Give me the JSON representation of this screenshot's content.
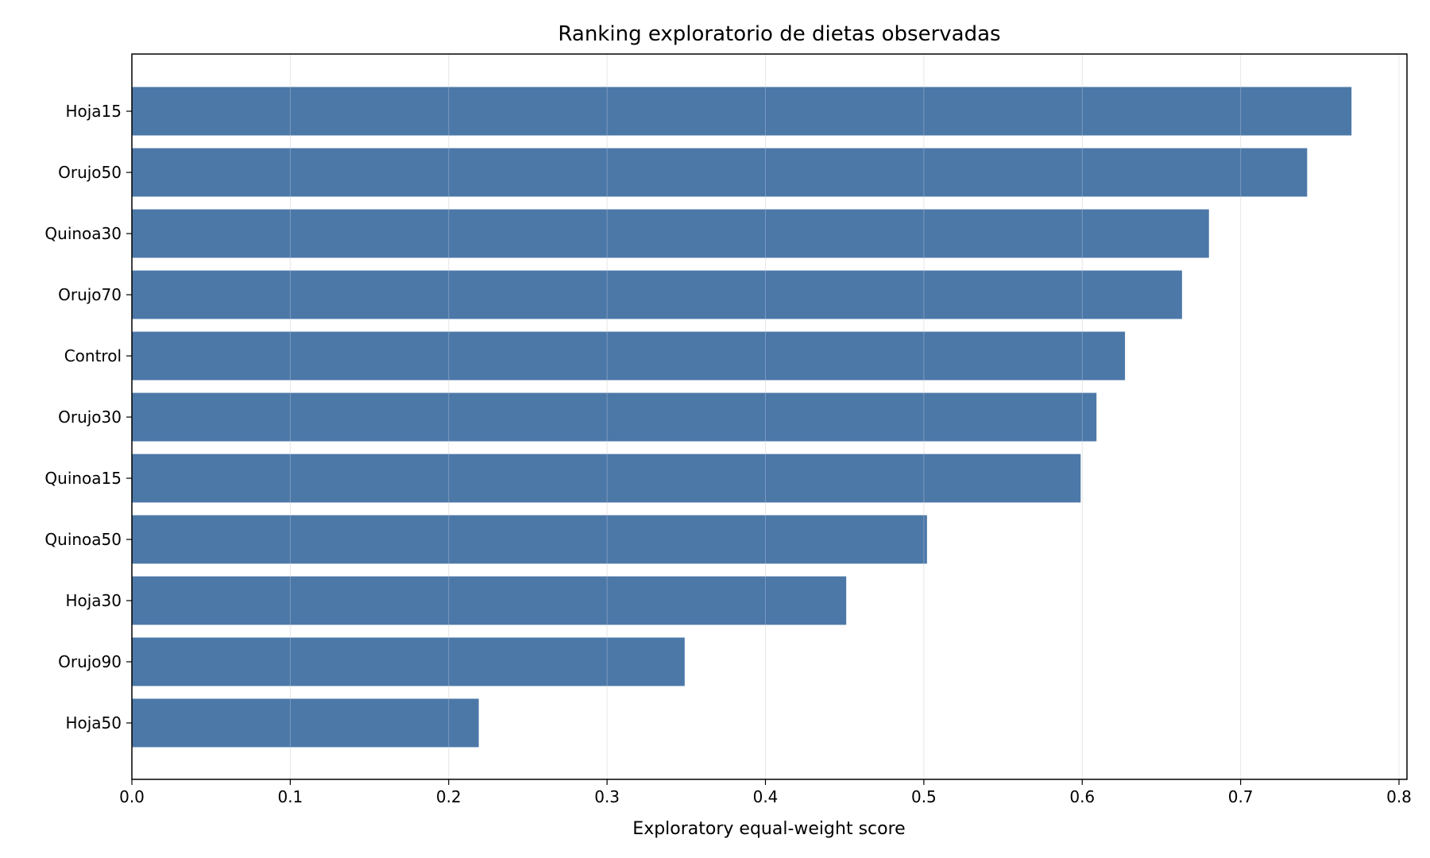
{
  "chart_data": {
    "type": "bar",
    "orientation": "horizontal",
    "title": "Ranking exploratorio de dietas observadas",
    "xlabel": "Exploratory equal-weight score",
    "ylabel": "",
    "categories": [
      "Hoja15",
      "Orujo50",
      "Quinoa30",
      "Orujo70",
      "Control",
      "Orujo30",
      "Quinoa15",
      "Quinoa50",
      "Hoja30",
      "Orujo90",
      "Hoja50"
    ],
    "values": [
      0.77,
      0.742,
      0.68,
      0.663,
      0.627,
      0.609,
      0.599,
      0.502,
      0.451,
      0.349,
      0.219
    ],
    "xlim": [
      0.0,
      0.8
    ],
    "xticks": [
      "0.0",
      "0.1",
      "0.2",
      "0.3",
      "0.4",
      "0.5",
      "0.6",
      "0.7",
      "0.8"
    ],
    "grid": "x",
    "bar_color": "#4c78a8",
    "grid_color": "#e0e0e0"
  }
}
